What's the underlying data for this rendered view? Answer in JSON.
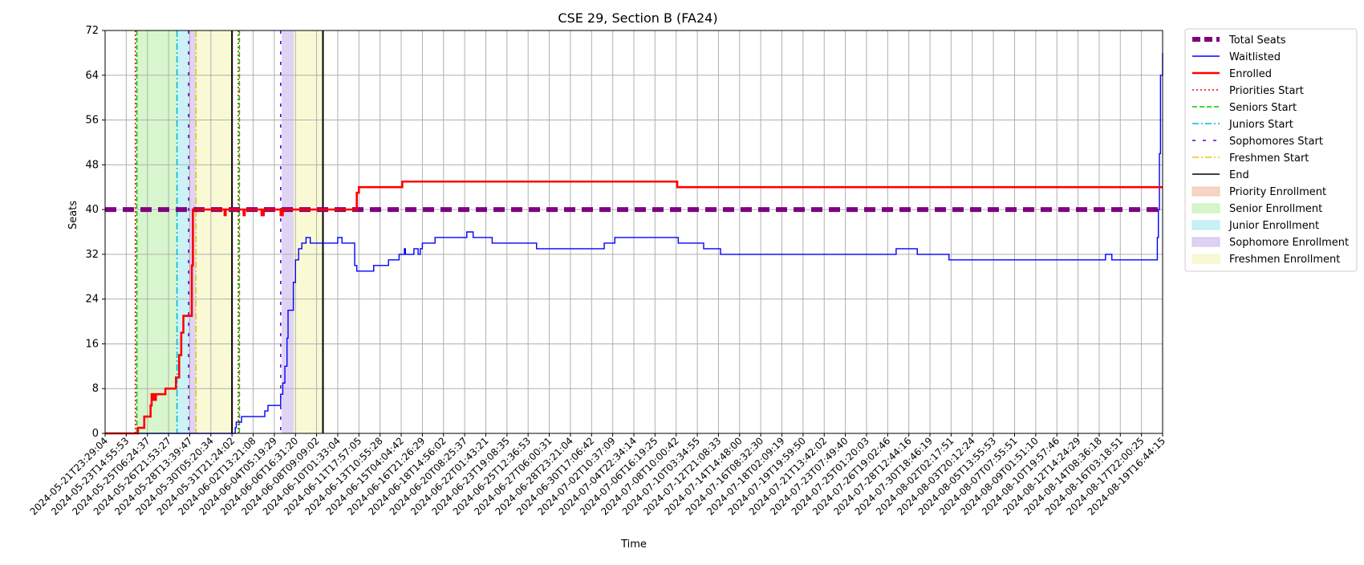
{
  "chart_data": {
    "type": "line",
    "title": "CSE 29, Section B (FA24)",
    "xlabel": "Time",
    "ylabel": "Seats",
    "ylim": [
      0,
      72
    ],
    "yticks": [
      0,
      8,
      16,
      24,
      32,
      40,
      48,
      56,
      64,
      72
    ],
    "grid": true,
    "legend_position": "outside-right",
    "x_tick_labels": [
      "2024-05-21T23:29:04",
      "2024-05-23T14:55:53",
      "2024-05-25T06:24:37",
      "2024-05-26T21:53:27",
      "2024-05-28T13:39:47",
      "2024-05-30T05:20:34",
      "2024-05-31T21:24:02",
      "2024-06-02T13:21:08",
      "2024-06-04T05:19:29",
      "2024-06-06T16:31:20",
      "2024-06-08T09:09:02",
      "2024-06-10T01:33:04",
      "2024-06-11T17:57:05",
      "2024-06-13T10:55:28",
      "2024-06-15T04:04:42",
      "2024-06-16T21:26:29",
      "2024-06-18T14:56:02",
      "2024-06-20T08:25:37",
      "2024-06-22T01:43:21",
      "2024-06-23T19:08:35",
      "2024-06-25T12:36:53",
      "2024-06-27T06:00:31",
      "2024-06-28T23:21:04",
      "2024-06-30T17:06:42",
      "2024-07-02T10:37:09",
      "2024-07-04T22:34:14",
      "2024-07-06T16:19:25",
      "2024-07-08T10:00:42",
      "2024-07-10T03:34:55",
      "2024-07-12T21:08:33",
      "2024-07-14T14:48:00",
      "2024-07-16T08:32:30",
      "2024-07-18T02:09:19",
      "2024-07-19T19:59:50",
      "2024-07-21T13:42:02",
      "2024-07-23T07:49:40",
      "2024-07-25T01:20:03",
      "2024-07-26T19:02:46",
      "2024-07-28T12:44:16",
      "2024-07-30T18:46:19",
      "2024-08-02T02:17:51",
      "2024-08-03T20:12:24",
      "2024-08-05T13:55:53",
      "2024-08-07T07:55:51",
      "2024-08-09T01:51:10",
      "2024-08-10T19:57:46",
      "2024-08-12T14:24:29",
      "2024-08-14T08:36:18",
      "2024-08-16T03:18:51",
      "2024-08-17T22:00:25",
      "2024-08-19T16:44:15"
    ],
    "legend": [
      {
        "label": "Total Seats",
        "kind": "line",
        "color": "#800080",
        "dash": "thick"
      },
      {
        "label": "Waitlisted",
        "kind": "line",
        "color": "#0000ff",
        "dash": "solid"
      },
      {
        "label": "Enrolled",
        "kind": "line",
        "color": "#ff0000",
        "dash": "solid"
      },
      {
        "label": "Priorities Start",
        "kind": "line",
        "color": "#ff0000",
        "dash": "dotted"
      },
      {
        "label": "Seniors Start",
        "kind": "line",
        "color": "#00cc00",
        "dash": "dashed"
      },
      {
        "label": "Juniors Start",
        "kind": "line",
        "color": "#00bcd4",
        "dash": "dashdot"
      },
      {
        "label": "Sophomores Start",
        "kind": "line",
        "color": "#5a00d6",
        "dash": "loosedash"
      },
      {
        "label": "Freshmen Start",
        "kind": "line",
        "color": "#e6c800",
        "dash": "dashdot"
      },
      {
        "label": "End",
        "kind": "line",
        "color": "#000000",
        "dash": "solid"
      },
      {
        "label": "Priority Enrollment",
        "kind": "patch",
        "color": "#f4c7b0"
      },
      {
        "label": "Senior Enrollment",
        "kind": "patch",
        "color": "#c8f2b8"
      },
      {
        "label": "Junior Enrollment",
        "kind": "patch",
        "color": "#b6ecf2"
      },
      {
        "label": "Sophomore Enrollment",
        "kind": "patch",
        "color": "#d3c2f0"
      },
      {
        "label": "Freshmen Enrollment",
        "kind": "patch",
        "color": "#f6f6c4"
      }
    ],
    "regions": [
      {
        "name": "Senior Enrollment",
        "x": [
          1.5,
          3.4
        ],
        "color": "#c8f2b8"
      },
      {
        "name": "Junior Enrollment",
        "x": [
          3.4,
          3.95
        ],
        "color": "#b6ecf2"
      },
      {
        "name": "Sophomore Enrollment",
        "x": [
          3.95,
          4.3
        ],
        "color": "#d3c2f0"
      },
      {
        "name": "Freshmen Enrollment",
        "x": [
          4.3,
          6.0
        ],
        "color": "#f6f6c4"
      },
      {
        "name": "Sophomore Enrollment",
        "x": [
          8.35,
          8.92
        ],
        "color": "#d3c2f0"
      },
      {
        "name": "Freshmen Enrollment",
        "x": [
          8.92,
          10.3
        ],
        "color": "#f6f6c4"
      }
    ],
    "vlines": [
      {
        "name": "Priorities Start",
        "x": 1.43,
        "color": "#ff0000",
        "dash": "dotted"
      },
      {
        "name": "Seniors Start",
        "x": 1.5,
        "color": "#00cc00",
        "dash": "dashed"
      },
      {
        "name": "Juniors Start",
        "x": 3.4,
        "color": "#00bcd4",
        "dash": "dashdot"
      },
      {
        "name": "Sophomores Start",
        "x": 3.95,
        "color": "#5a00d6",
        "dash": "loosedash"
      },
      {
        "name": "Freshmen Start",
        "x": 4.3,
        "color": "#e6c800",
        "dash": "dashdot"
      },
      {
        "name": "End",
        "x": 6.0,
        "color": "#000000",
        "dash": "solid"
      },
      {
        "name": "Priorities Start",
        "x": 6.3,
        "color": "#ff0000",
        "dash": "dotted"
      },
      {
        "name": "Seniors Start",
        "x": 6.35,
        "color": "#00cc00",
        "dash": "dashed"
      },
      {
        "name": "Sophomores Start",
        "x": 8.3,
        "color": "#5a00d6",
        "dash": "loosedash"
      },
      {
        "name": "End",
        "x": 10.3,
        "color": "#000000",
        "dash": "solid"
      }
    ],
    "series": [
      {
        "name": "Total Seats",
        "color": "#800080",
        "style": "thick-dash",
        "points": [
          [
            0,
            40
          ],
          [
            50,
            40
          ]
        ]
      },
      {
        "name": "Enrolled",
        "color": "#ff0000",
        "style": "solid",
        "points": [
          [
            0,
            0
          ],
          [
            1.5,
            0
          ],
          [
            1.55,
            1
          ],
          [
            1.8,
            1
          ],
          [
            1.85,
            3
          ],
          [
            2.1,
            3
          ],
          [
            2.15,
            5
          ],
          [
            2.2,
            7
          ],
          [
            2.3,
            6
          ],
          [
            2.4,
            7
          ],
          [
            2.8,
            7
          ],
          [
            2.85,
            8
          ],
          [
            3.3,
            8
          ],
          [
            3.35,
            10
          ],
          [
            3.5,
            14
          ],
          [
            3.6,
            18
          ],
          [
            3.7,
            21
          ],
          [
            4.0,
            21
          ],
          [
            4.1,
            30
          ],
          [
            4.15,
            40
          ],
          [
            5.6,
            40
          ],
          [
            5.65,
            39
          ],
          [
            5.7,
            40
          ],
          [
            6.5,
            40
          ],
          [
            6.55,
            39
          ],
          [
            6.6,
            40
          ],
          [
            7.35,
            40
          ],
          [
            7.4,
            39
          ],
          [
            7.5,
            40
          ],
          [
            8.2,
            40
          ],
          [
            8.3,
            39
          ],
          [
            8.4,
            40
          ],
          [
            11.8,
            40
          ],
          [
            11.9,
            43
          ],
          [
            12.0,
            44
          ],
          [
            14.0,
            44
          ],
          [
            14.05,
            45
          ],
          [
            27.0,
            45
          ],
          [
            27.05,
            44
          ],
          [
            50,
            44
          ]
        ]
      },
      {
        "name": "Waitlisted",
        "color": "#0000ff",
        "style": "solid",
        "points": [
          [
            0,
            0
          ],
          [
            6.0,
            0
          ],
          [
            6.15,
            1
          ],
          [
            6.2,
            2
          ],
          [
            6.4,
            2
          ],
          [
            6.45,
            3
          ],
          [
            7.5,
            3
          ],
          [
            7.55,
            4
          ],
          [
            7.7,
            5
          ],
          [
            8.2,
            5
          ],
          [
            8.3,
            7
          ],
          [
            8.4,
            9
          ],
          [
            8.5,
            12
          ],
          [
            8.6,
            17
          ],
          [
            8.65,
            22
          ],
          [
            8.8,
            22
          ],
          [
            8.9,
            27
          ],
          [
            9.0,
            31
          ],
          [
            9.15,
            33
          ],
          [
            9.3,
            34
          ],
          [
            9.5,
            35
          ],
          [
            9.7,
            34
          ],
          [
            10.8,
            34
          ],
          [
            11.0,
            35
          ],
          [
            11.2,
            34
          ],
          [
            11.7,
            34
          ],
          [
            11.8,
            30
          ],
          [
            11.9,
            29
          ],
          [
            12.6,
            29
          ],
          [
            12.7,
            30
          ],
          [
            13.3,
            30
          ],
          [
            13.4,
            31
          ],
          [
            13.8,
            31
          ],
          [
            13.9,
            32
          ],
          [
            14.1,
            32
          ],
          [
            14.15,
            33
          ],
          [
            14.2,
            32
          ],
          [
            14.5,
            32
          ],
          [
            14.6,
            33
          ],
          [
            14.8,
            32
          ],
          [
            14.9,
            33
          ],
          [
            15.0,
            34
          ],
          [
            15.5,
            34
          ],
          [
            15.6,
            35
          ],
          [
            17.0,
            35
          ],
          [
            17.1,
            36
          ],
          [
            17.3,
            36
          ],
          [
            17.4,
            35
          ],
          [
            18.2,
            35
          ],
          [
            18.3,
            34
          ],
          [
            20.3,
            34
          ],
          [
            20.4,
            33
          ],
          [
            23.5,
            33
          ],
          [
            23.6,
            34
          ],
          [
            24.0,
            34
          ],
          [
            24.1,
            35
          ],
          [
            27.0,
            35
          ],
          [
            27.1,
            34
          ],
          [
            28.2,
            34
          ],
          [
            28.3,
            33
          ],
          [
            29.0,
            33
          ],
          [
            29.1,
            32
          ],
          [
            37.3,
            32
          ],
          [
            37.4,
            33
          ],
          [
            38.3,
            33
          ],
          [
            38.4,
            32
          ],
          [
            39.8,
            32
          ],
          [
            39.9,
            31
          ],
          [
            47.2,
            31
          ],
          [
            47.3,
            32
          ],
          [
            47.5,
            32
          ],
          [
            47.6,
            31
          ],
          [
            49.7,
            31
          ],
          [
            49.75,
            35
          ],
          [
            49.8,
            40
          ],
          [
            49.85,
            50
          ],
          [
            49.9,
            64
          ],
          [
            50,
            68
          ]
        ]
      }
    ]
  }
}
